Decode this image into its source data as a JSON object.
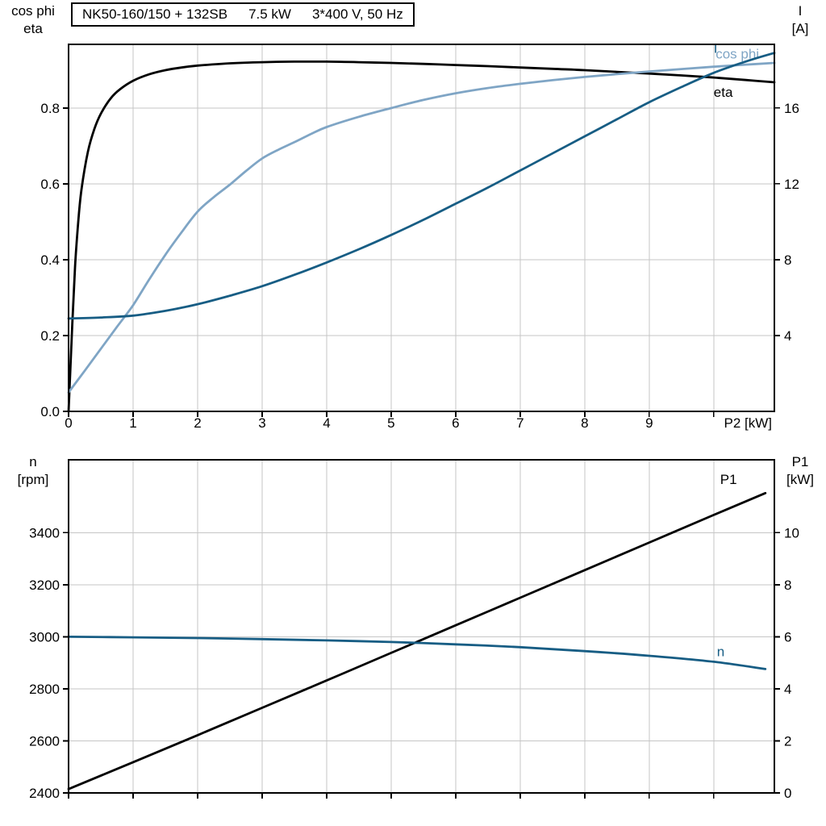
{
  "colors": {
    "black": "#000000",
    "dark_blue": "#175d84",
    "light_blue": "#7fa5c5",
    "grid": "#c6c6c6"
  },
  "chart_data": [
    {
      "type": "line",
      "title": "NK50-160/150 + 132SB 7.5 kW 3*400 V, 50 Hz",
      "title_parts": [
        "NK50-160/150 + 132SB",
        "7.5 kW",
        "3*400 V, 50 Hz"
      ],
      "xlabel": "P2 [kW]",
      "xlim": [
        0,
        10.94
      ],
      "x_grid": [
        1,
        2,
        3,
        4,
        5,
        6,
        7,
        8,
        9,
        10
      ],
      "x_ticks": [
        {
          "v": 0,
          "label": "0"
        },
        {
          "v": 1,
          "label": "1"
        },
        {
          "v": 2,
          "label": "2"
        },
        {
          "v": 3,
          "label": "3"
        },
        {
          "v": 4,
          "label": "4"
        },
        {
          "v": 5,
          "label": "5"
        },
        {
          "v": 6,
          "label": "6"
        },
        {
          "v": 7,
          "label": "7"
        },
        {
          "v": 8,
          "label": "8"
        },
        {
          "v": 9,
          "label": "9"
        }
      ],
      "left_axis": {
        "title_lines": [
          "cos phi",
          "eta"
        ],
        "lim": [
          0,
          0.968
        ],
        "ticks": [
          {
            "v": 0,
            "label": "0.0"
          },
          {
            "v": 0.2,
            "label": "0.2"
          },
          {
            "v": 0.4,
            "label": "0.4"
          },
          {
            "v": 0.6,
            "label": "0.6"
          },
          {
            "v": 0.8,
            "label": "0.8"
          }
        ]
      },
      "right_axis": {
        "title_lines": [
          "I",
          "[A]"
        ],
        "lim": [
          0,
          19.35
        ],
        "ticks": [
          {
            "v": 4,
            "label": "4"
          },
          {
            "v": 8,
            "label": "8"
          },
          {
            "v": 12,
            "label": "12"
          },
          {
            "v": 16,
            "label": "16"
          }
        ]
      },
      "series": [
        {
          "name": "eta",
          "label": "eta",
          "axis": "left",
          "color": "black",
          "label_pos": [
            10.0,
            0.83
          ],
          "points": [
            [
              0,
              0
            ],
            [
              0.05,
              0.2
            ],
            [
              0.1,
              0.38
            ],
            [
              0.15,
              0.5
            ],
            [
              0.2,
              0.585
            ],
            [
              0.3,
              0.685
            ],
            [
              0.4,
              0.745
            ],
            [
              0.5,
              0.785
            ],
            [
              0.65,
              0.825
            ],
            [
              0.8,
              0.85
            ],
            [
              1.0,
              0.872
            ],
            [
              1.25,
              0.889
            ],
            [
              1.5,
              0.9
            ],
            [
              1.75,
              0.907
            ],
            [
              2.0,
              0.912
            ],
            [
              2.5,
              0.918
            ],
            [
              3.0,
              0.921
            ],
            [
              3.5,
              0.9225
            ],
            [
              4.0,
              0.9225
            ],
            [
              4.5,
              0.921
            ],
            [
              5.0,
              0.919
            ],
            [
              5.5,
              0.9165
            ],
            [
              6.0,
              0.9135
            ],
            [
              6.5,
              0.9105
            ],
            [
              7.0,
              0.907
            ],
            [
              7.5,
              0.9035
            ],
            [
              8.0,
              0.9
            ],
            [
              8.5,
              0.8955
            ],
            [
              9.0,
              0.891
            ],
            [
              9.5,
              0.886
            ],
            [
              10.0,
              0.8805
            ],
            [
              10.5,
              0.874
            ],
            [
              10.94,
              0.868
            ]
          ]
        },
        {
          "name": "cos phi",
          "label": "cos phi",
          "axis": "left",
          "color": "light_blue",
          "label_pos": [
            10.03,
            0.931
          ],
          "points": [
            [
              0,
              0.05
            ],
            [
              0.25,
              0.107
            ],
            [
              0.5,
              0.165
            ],
            [
              0.75,
              0.223
            ],
            [
              1.0,
              0.28
            ],
            [
              1.25,
              0.348
            ],
            [
              1.5,
              0.413
            ],
            [
              1.75,
              0.472
            ],
            [
              2.0,
              0.527
            ],
            [
              2.25,
              0.565
            ],
            [
              2.5,
              0.598
            ],
            [
              2.75,
              0.634
            ],
            [
              3.0,
              0.667
            ],
            [
              3.25,
              0.69
            ],
            [
              3.5,
              0.71
            ],
            [
              3.75,
              0.731
            ],
            [
              4.0,
              0.75
            ],
            [
              4.5,
              0.777
            ],
            [
              5.0,
              0.8
            ],
            [
              5.5,
              0.8215
            ],
            [
              6.0,
              0.839
            ],
            [
              6.5,
              0.853
            ],
            [
              7.0,
              0.864
            ],
            [
              7.5,
              0.8735
            ],
            [
              8.0,
              0.882
            ],
            [
              8.5,
              0.8895
            ],
            [
              9.0,
              0.8965
            ],
            [
              9.5,
              0.903
            ],
            [
              10.0,
              0.909
            ],
            [
              10.5,
              0.9145
            ],
            [
              10.94,
              0.919
            ]
          ]
        },
        {
          "name": "I",
          "label": "I",
          "axis": "right",
          "color": "dark_blue",
          "label_pos": [
            10.0,
            18.9
          ],
          "points": [
            [
              0,
              4.9
            ],
            [
              0.5,
              4.95
            ],
            [
              1.0,
              5.05
            ],
            [
              1.5,
              5.3
            ],
            [
              2.0,
              5.65
            ],
            [
              2.5,
              6.1
            ],
            [
              3.0,
              6.6
            ],
            [
              3.5,
              7.2
            ],
            [
              4.0,
              7.85
            ],
            [
              4.5,
              8.55
            ],
            [
              5.0,
              9.3
            ],
            [
              5.5,
              10.1
            ],
            [
              6.0,
              10.95
            ],
            [
              6.5,
              11.8
            ],
            [
              7.0,
              12.7
            ],
            [
              7.5,
              13.6
            ],
            [
              8.0,
              14.5
            ],
            [
              8.5,
              15.4
            ],
            [
              9.0,
              16.3
            ],
            [
              9.5,
              17.1
            ],
            [
              10.0,
              17.85
            ],
            [
              10.5,
              18.45
            ],
            [
              10.94,
              18.9
            ]
          ]
        }
      ]
    },
    {
      "type": "line",
      "title": "",
      "xlabel": "",
      "xlim": [
        0,
        10.94
      ],
      "x_grid": [
        1,
        2,
        3,
        4,
        5,
        6,
        7,
        8,
        9,
        10
      ],
      "x_ticks": [],
      "left_axis": {
        "title_lines": [
          "n",
          "[rpm]"
        ],
        "lim": [
          2400,
          3680
        ],
        "ticks": [
          {
            "v": 2400,
            "label": "2400"
          },
          {
            "v": 2600,
            "label": "2600"
          },
          {
            "v": 2800,
            "label": "2800"
          },
          {
            "v": 3000,
            "label": "3000"
          },
          {
            "v": 3200,
            "label": "3200"
          },
          {
            "v": 3400,
            "label": "3400"
          }
        ]
      },
      "right_axis": {
        "title_lines": [
          "P1",
          "[kW]"
        ],
        "lim": [
          0,
          12.8
        ],
        "ticks": [
          {
            "v": 0,
            "label": "0"
          },
          {
            "v": 2,
            "label": "2"
          },
          {
            "v": 4,
            "label": "4"
          },
          {
            "v": 6,
            "label": "6"
          },
          {
            "v": 8,
            "label": "8"
          },
          {
            "v": 10,
            "label": "10"
          }
        ]
      },
      "series": [
        {
          "name": "P1",
          "label": "P1",
          "axis": "right",
          "color": "black",
          "label_pos": [
            10.1,
            11.87
          ],
          "points": [
            [
              0,
              0.15
            ],
            [
              1,
              1.18
            ],
            [
              2,
              2.22
            ],
            [
              3,
              3.27
            ],
            [
              4,
              4.32
            ],
            [
              5,
              5.38
            ],
            [
              6,
              6.44
            ],
            [
              7,
              7.5
            ],
            [
              8,
              8.56
            ],
            [
              9,
              9.62
            ],
            [
              10,
              10.68
            ],
            [
              10.8,
              11.52
            ]
          ]
        },
        {
          "name": "n",
          "label": "n",
          "axis": "left",
          "color": "dark_blue",
          "label_pos": [
            10.05,
            2925
          ],
          "points": [
            [
              0,
              3000
            ],
            [
              1,
              2998
            ],
            [
              2,
              2995
            ],
            [
              3,
              2991
            ],
            [
              4,
              2986
            ],
            [
              5,
              2980
            ],
            [
              6,
              2971
            ],
            [
              7,
              2960
            ],
            [
              8,
              2945
            ],
            [
              9,
              2927
            ],
            [
              10,
              2904
            ],
            [
              10.8,
              2876
            ]
          ]
        }
      ]
    }
  ]
}
